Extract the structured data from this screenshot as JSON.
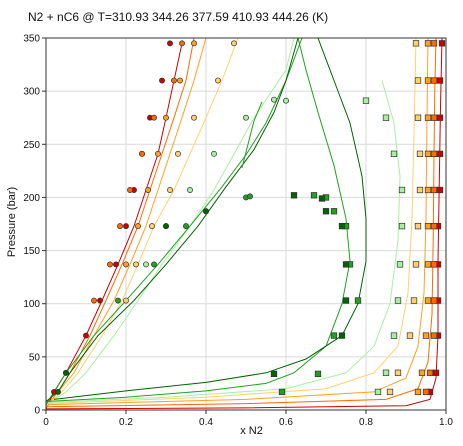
{
  "chart_data": {
    "type": "scatter",
    "title": "N2 + nC6 @ T=310.93 344.26 377.59 410.93 444.26 (K)",
    "xlabel": "x N2",
    "ylabel": "Pressure (bar)",
    "xlim": [
      0,
      1
    ],
    "ylim": [
      0,
      350
    ],
    "xticks": [
      "0",
      "0.2",
      "0.4",
      "0.6",
      "0.8",
      "1.0"
    ],
    "yticks": [
      "0",
      "50",
      "100",
      "150",
      "200",
      "250",
      "300",
      "350"
    ],
    "grid": true,
    "legend": "none",
    "series": [
      {
        "color": "#cc0000",
        "liquid_points": [
          [
            0.02,
            17
          ],
          [
            0.05,
            35
          ],
          [
            0.1,
            70
          ],
          [
            0.135,
            103
          ],
          [
            0.175,
            137
          ],
          [
            0.2,
            173
          ],
          [
            0.22,
            207
          ],
          [
            0.24,
            241
          ],
          [
            0.26,
            275
          ],
          [
            0.29,
            310
          ],
          [
            0.31,
            345
          ]
        ],
        "vapor_points": [
          [
            0.96,
            17
          ],
          [
            0.975,
            35
          ],
          [
            0.98,
            70
          ],
          [
            0.98,
            103
          ],
          [
            0.98,
            137
          ],
          [
            0.98,
            173
          ],
          [
            0.985,
            207
          ],
          [
            0.985,
            241
          ],
          [
            0.985,
            275
          ],
          [
            0.985,
            310
          ],
          [
            0.99,
            345
          ]
        ],
        "bubble_curve": [
          [
            0,
            1
          ],
          [
            0.02,
            17
          ],
          [
            0.05,
            35
          ],
          [
            0.1,
            70
          ],
          [
            0.14,
            103
          ],
          [
            0.18,
            137
          ],
          [
            0.22,
            173
          ],
          [
            0.25,
            207
          ],
          [
            0.28,
            241
          ],
          [
            0.3,
            275
          ],
          [
            0.32,
            310
          ],
          [
            0.34,
            345
          ]
        ],
        "dew_curve": [
          [
            0,
            1
          ],
          [
            0.5,
            2
          ],
          [
            0.9,
            4
          ],
          [
            0.96,
            10
          ],
          [
            0.975,
            30
          ],
          [
            0.98,
            70
          ],
          [
            0.98,
            140
          ],
          [
            0.983,
            210
          ],
          [
            0.986,
            280
          ],
          [
            0.99,
            350
          ]
        ]
      },
      {
        "color": "#ff6a00",
        "liquid_points": [
          [
            0.12,
            103
          ],
          [
            0.16,
            137
          ],
          [
            0.185,
            173
          ],
          [
            0.21,
            207
          ],
          [
            0.24,
            241
          ],
          [
            0.27,
            275
          ],
          [
            0.32,
            310
          ],
          [
            0.34,
            345
          ]
        ],
        "vapor_points": [
          [
            0.95,
            17
          ],
          [
            0.96,
            35
          ],
          [
            0.97,
            70
          ],
          [
            0.97,
            103
          ],
          [
            0.97,
            137
          ],
          [
            0.97,
            173
          ],
          [
            0.97,
            207
          ],
          [
            0.97,
            241
          ],
          [
            0.97,
            275
          ],
          [
            0.97,
            310
          ],
          [
            0.97,
            345
          ]
        ],
        "bubble_curve": [
          [
            0,
            2
          ],
          [
            0.03,
            17
          ],
          [
            0.06,
            35
          ],
          [
            0.11,
            70
          ],
          [
            0.15,
            103
          ],
          [
            0.19,
            137
          ],
          [
            0.23,
            173
          ],
          [
            0.26,
            207
          ],
          [
            0.29,
            241
          ],
          [
            0.32,
            275
          ],
          [
            0.35,
            310
          ],
          [
            0.37,
            350
          ]
        ],
        "dew_curve": [
          [
            0,
            3
          ],
          [
            0.5,
            6
          ],
          [
            0.85,
            10
          ],
          [
            0.93,
            20
          ],
          [
            0.955,
            45
          ],
          [
            0.965,
            90
          ],
          [
            0.968,
            160
          ],
          [
            0.97,
            240
          ],
          [
            0.972,
            300
          ],
          [
            0.975,
            350
          ]
        ]
      },
      {
        "color": "#ffa020",
        "liquid_points": [
          [
            0.2,
            137
          ],
          [
            0.23,
            173
          ],
          [
            0.255,
            207
          ],
          [
            0.28,
            241
          ],
          [
            0.3,
            275
          ],
          [
            0.335,
            310
          ],
          [
            0.37,
            345
          ]
        ],
        "vapor_points": [
          [
            0.93,
            17
          ],
          [
            0.94,
            35
          ],
          [
            0.95,
            70
          ],
          [
            0.955,
            103
          ],
          [
            0.955,
            137
          ],
          [
            0.955,
            173
          ],
          [
            0.955,
            207
          ],
          [
            0.955,
            241
          ],
          [
            0.955,
            275
          ],
          [
            0.955,
            310
          ],
          [
            0.955,
            345
          ]
        ],
        "bubble_curve": [
          [
            0,
            3
          ],
          [
            0.03,
            17
          ],
          [
            0.07,
            35
          ],
          [
            0.12,
            70
          ],
          [
            0.17,
            103
          ],
          [
            0.21,
            137
          ],
          [
            0.25,
            173
          ],
          [
            0.28,
            207
          ],
          [
            0.31,
            241
          ],
          [
            0.34,
            275
          ],
          [
            0.37,
            310
          ],
          [
            0.4,
            350
          ]
        ],
        "dew_curve": [
          [
            0,
            5
          ],
          [
            0.5,
            10
          ],
          [
            0.82,
            17
          ],
          [
            0.9,
            30
          ],
          [
            0.93,
            60
          ],
          [
            0.945,
            110
          ],
          [
            0.95,
            180
          ],
          [
            0.952,
            260
          ],
          [
            0.955,
            350
          ]
        ]
      },
      {
        "color": "#ffd070",
        "liquid_points": [
          [
            0.2,
            103
          ],
          [
            0.225,
            137
          ],
          [
            0.265,
            173
          ],
          [
            0.31,
            207
          ],
          [
            0.33,
            241
          ],
          [
            0.37,
            275
          ],
          [
            0.43,
            310
          ],
          [
            0.47,
            345
          ]
        ],
        "vapor_points": [
          [
            0.86,
            17
          ],
          [
            0.88,
            35
          ],
          [
            0.91,
            70
          ],
          [
            0.92,
            103
          ],
          [
            0.925,
            137
          ],
          [
            0.93,
            173
          ],
          [
            0.935,
            207
          ],
          [
            0.935,
            241
          ],
          [
            0.93,
            275
          ],
          [
            0.93,
            310
          ],
          [
            0.925,
            345
          ]
        ],
        "bubble_curve": [
          [
            0,
            4
          ],
          [
            0.04,
            17
          ],
          [
            0.08,
            35
          ],
          [
            0.14,
            70
          ],
          [
            0.19,
            103
          ],
          [
            0.23,
            137
          ],
          [
            0.27,
            173
          ],
          [
            0.32,
            207
          ],
          [
            0.36,
            241
          ],
          [
            0.4,
            275
          ],
          [
            0.44,
            310
          ],
          [
            0.48,
            350
          ]
        ],
        "dew_curve": [
          [
            0,
            6
          ],
          [
            0.4,
            12
          ],
          [
            0.7,
            20
          ],
          [
            0.82,
            35
          ],
          [
            0.88,
            60
          ],
          [
            0.905,
            110
          ],
          [
            0.915,
            180
          ],
          [
            0.92,
            260
          ],
          [
            0.925,
            350
          ]
        ]
      },
      {
        "color": "#a8f0a0",
        "liquid_points": [
          [
            0.25,
            137
          ],
          [
            0.3,
            173
          ],
          [
            0.36,
            207
          ],
          [
            0.42,
            241
          ],
          [
            0.5,
            275
          ],
          [
            0.6,
            291
          ],
          [
            0.57,
            292
          ]
        ],
        "vapor_points": [
          [
            0.83,
            17
          ],
          [
            0.85,
            35
          ],
          [
            0.87,
            70
          ],
          [
            0.88,
            103
          ],
          [
            0.885,
            137
          ],
          [
            0.89,
            173
          ],
          [
            0.89,
            207
          ],
          [
            0.87,
            241
          ],
          [
            0.85,
            275
          ],
          [
            0.8,
            291
          ]
        ],
        "bubble_curve": [
          [
            0,
            5
          ],
          [
            0.05,
            17
          ],
          [
            0.1,
            35
          ],
          [
            0.17,
            70
          ],
          [
            0.23,
            103
          ],
          [
            0.29,
            137
          ],
          [
            0.36,
            173
          ],
          [
            0.42,
            207
          ],
          [
            0.47,
            241
          ],
          [
            0.52,
            275
          ],
          [
            0.6,
            320
          ],
          [
            0.62,
            350
          ]
        ],
        "dew_curve": [
          [
            0,
            7
          ],
          [
            0.3,
            12
          ],
          [
            0.6,
            20
          ],
          [
            0.75,
            35
          ],
          [
            0.82,
            60
          ],
          [
            0.86,
            100
          ],
          [
            0.88,
            160
          ],
          [
            0.885,
            220
          ],
          [
            0.87,
            270
          ],
          [
            0.84,
            310
          ]
        ]
      },
      {
        "color": "#22a022",
        "liquid_points": [
          [
            0.05,
            35
          ],
          [
            0.18,
            103
          ],
          [
            0.27,
            137
          ],
          [
            0.35,
            173
          ],
          [
            0.4,
            187
          ],
          [
            0.5,
            200
          ],
          [
            0.51,
            201
          ]
        ],
        "vapor_points": [
          [
            0.59,
            17
          ],
          [
            0.68,
            34
          ],
          [
            0.72,
            70
          ],
          [
            0.78,
            103
          ],
          [
            0.76,
            137
          ],
          [
            0.75,
            173
          ],
          [
            0.72,
            187
          ],
          [
            0.7,
            200
          ],
          [
            0.67,
            202
          ]
        ],
        "bubble_curve": [
          [
            0,
            5
          ],
          [
            0.05,
            35
          ],
          [
            0.12,
            70
          ],
          [
            0.2,
            103
          ],
          [
            0.28,
            137
          ],
          [
            0.36,
            173
          ],
          [
            0.44,
            210
          ],
          [
            0.5,
            240
          ],
          [
            0.55,
            270
          ],
          [
            0.6,
            310
          ],
          [
            0.64,
            350
          ]
        ],
        "dew_curve": [
          [
            0,
            8
          ],
          [
            0.2,
            12
          ],
          [
            0.4,
            18
          ],
          [
            0.55,
            25
          ],
          [
            0.62,
            35
          ],
          [
            0.7,
            60
          ],
          [
            0.74,
            100
          ],
          [
            0.76,
            140
          ],
          [
            0.75,
            180
          ],
          [
            0.72,
            230
          ],
          [
            0.68,
            280
          ],
          [
            0.65,
            320
          ],
          [
            0.63,
            350
          ]
        ]
      },
      {
        "color": "#006400",
        "liquid_points": [
          [
            0.03,
            17
          ],
          [
            0.05,
            35
          ],
          [
            0.3,
            173
          ],
          [
            0.4,
            187
          ]
        ],
        "vapor_points": [
          [
            0.57,
            34
          ],
          [
            0.62,
            202
          ],
          [
            0.69,
            199
          ],
          [
            0.7,
            187
          ],
          [
            0.74,
            173
          ],
          [
            0.75,
            137
          ],
          [
            0.75,
            103
          ],
          [
            0.74,
            70
          ]
        ],
        "bubble_curve": [
          [
            0,
            8
          ],
          [
            0.03,
            17
          ],
          [
            0.06,
            35
          ],
          [
            0.13,
            70
          ],
          [
            0.22,
            103
          ],
          [
            0.3,
            137
          ],
          [
            0.38,
            173
          ],
          [
            0.45,
            210
          ],
          [
            0.52,
            245
          ],
          [
            0.57,
            280
          ],
          [
            0.6,
            310
          ],
          [
            0.63,
            350
          ]
        ],
        "dew_curve": [
          [
            0.02,
            10
          ],
          [
            0.2,
            18
          ],
          [
            0.4,
            26
          ],
          [
            0.55,
            35
          ],
          [
            0.65,
            48
          ],
          [
            0.74,
            70
          ],
          [
            0.78,
            100
          ],
          [
            0.8,
            140
          ],
          [
            0.8,
            180
          ],
          [
            0.79,
            220
          ],
          [
            0.76,
            270
          ],
          [
            0.72,
            310
          ],
          [
            0.7,
            330
          ],
          [
            0.68,
            350
          ]
        ]
      }
    ],
    "crossover_line": [
      [
        0.49,
        228
      ],
      [
        0.52,
        272
      ],
      [
        0.54,
        290
      ]
    ]
  }
}
